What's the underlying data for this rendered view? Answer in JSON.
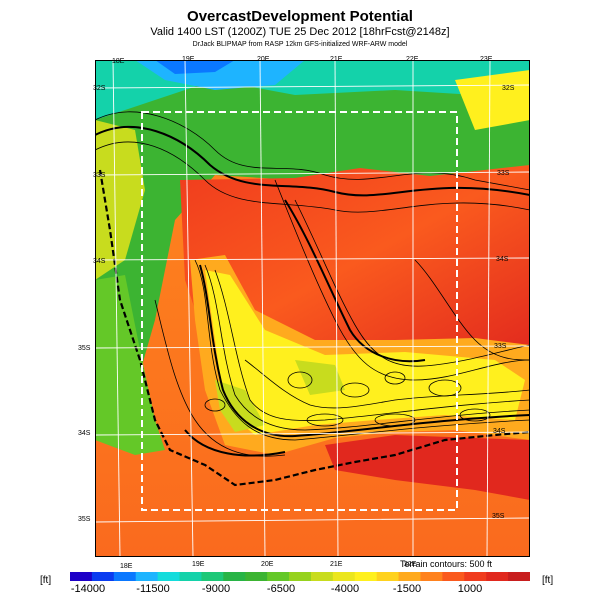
{
  "header": {
    "title": "OvercastDevelopment Potential",
    "subtitle": "Valid 1400 LST (1200Z) TUE 25 Dec 2012 [18hrFcst@2148z]",
    "credit": "DrJack BLIPMAP from RASP 12km GFS-initialized WRF-ARW model"
  },
  "map": {
    "lon_labels_top": [
      "18E",
      "19E",
      "20E",
      "21E",
      "22E",
      "23E"
    ],
    "lon_labels_bottom": [
      "18E",
      "19E",
      "20E",
      "21E",
      "22E"
    ],
    "lat_labels_left": [
      "32S",
      "33S",
      "34S",
      "35S",
      "34S",
      "35S"
    ],
    "lat_labels_right": [
      "32S",
      "33S",
      "34S",
      "33S",
      "34S",
      "35S"
    ],
    "terrain_note": "Terrain contours: 500 ft"
  },
  "colorbar": {
    "unit_left": "[ft]",
    "unit_right": "[ft]",
    "tick_labels": [
      "-14000",
      "-11500",
      "-9000",
      "-6500",
      "-4000",
      "-1500",
      "1000"
    ],
    "colors": [
      "#1d00c8",
      "#0a3cf0",
      "#0a78ff",
      "#1eb4ff",
      "#14dcdc",
      "#14d2aa",
      "#1ec878",
      "#28b446",
      "#3cb432",
      "#64c828",
      "#96d21e",
      "#c8dc1e",
      "#ebe61e",
      "#fff01e",
      "#ffd21e",
      "#ffaa1e",
      "#ff821e",
      "#fa5a1e",
      "#f03c1e",
      "#e1281e",
      "#c81e1e"
    ]
  }
}
